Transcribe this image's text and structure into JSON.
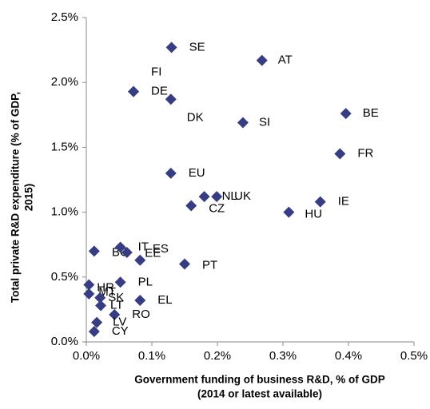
{
  "chart_data": {
    "type": "scatter",
    "x_label": [
      "Government funding of business R&D, % of GDP",
      "(2014 or latest available)"
    ],
    "y_label": [
      "Total private  R&D expenditure (% of GDP,",
      "2015)"
    ],
    "color": "#363d82",
    "points": [
      {
        "label": "SE",
        "x": 0.13,
        "y": 2.27
      },
      {
        "label": "AT",
        "x": 0.268,
        "y": 2.17
      },
      {
        "label": "FI",
        "x": 0.072,
        "y": 1.93
      },
      {
        "label": "DE",
        "x": 0.072,
        "y": 1.93
      },
      {
        "label": "DK",
        "x": 0.129,
        "y": 1.87
      },
      {
        "label": "BE",
        "x": 0.396,
        "y": 1.76
      },
      {
        "label": "SI",
        "x": 0.239,
        "y": 1.69
      },
      {
        "label": "FR",
        "x": 0.387,
        "y": 1.45
      },
      {
        "label": "EU",
        "x": 0.129,
        "y": 1.3
      },
      {
        "label": "NL",
        "x": 0.18,
        "y": 1.12
      },
      {
        "label": "UK",
        "x": 0.199,
        "y": 1.12
      },
      {
        "label": "CZ",
        "x": 0.16,
        "y": 1.05
      },
      {
        "label": "IE",
        "x": 0.357,
        "y": 1.08
      },
      {
        "label": "HU",
        "x": 0.309,
        "y": 1.0
      },
      {
        "label": "BG",
        "x": 0.012,
        "y": 0.7
      },
      {
        "label": "IT",
        "x": 0.052,
        "y": 0.73
      },
      {
        "label": "ES",
        "x": 0.062,
        "y": 0.69
      },
      {
        "label": "EE",
        "x": 0.082,
        "y": 0.63
      },
      {
        "label": "PT",
        "x": 0.15,
        "y": 0.6
      },
      {
        "label": "PL",
        "x": 0.052,
        "y": 0.46
      },
      {
        "label": "HR",
        "x": 0.004,
        "y": 0.44
      },
      {
        "label": "MT",
        "x": 0.004,
        "y": 0.37
      },
      {
        "label": "SK",
        "x": 0.021,
        "y": 0.34
      },
      {
        "label": "LT",
        "x": 0.022,
        "y": 0.28
      },
      {
        "label": "EL",
        "x": 0.082,
        "y": 0.32
      },
      {
        "label": "RO",
        "x": 0.043,
        "y": 0.21
      },
      {
        "label": "LV",
        "x": 0.016,
        "y": 0.15
      },
      {
        "label": "CY",
        "x": 0.012,
        "y": 0.08
      }
    ],
    "xlim": [
      0,
      0.5
    ],
    "xticks": [
      {
        "value": 0,
        "label": "0.0%"
      },
      {
        "value": 0.1,
        "label": "0.1%"
      },
      {
        "value": 0.2,
        "label": "0.2%"
      },
      {
        "value": 0.3,
        "label": "0.3%"
      },
      {
        "value": 0.4,
        "label": "0.4%"
      },
      {
        "value": 0.5,
        "label": "0.5%"
      }
    ],
    "ylim": [
      0,
      2.5
    ],
    "yticks": [
      {
        "value": 0,
        "label": "0.0%"
      },
      {
        "value": 0.5,
        "label": "0.5%"
      },
      {
        "value": 1.0,
        "label": "1.0%"
      },
      {
        "value": 1.5,
        "label": "1.5%"
      },
      {
        "value": 2.0,
        "label": "2.0%"
      },
      {
        "value": 2.5,
        "label": "2.5%"
      }
    ],
    "grid": false
  }
}
